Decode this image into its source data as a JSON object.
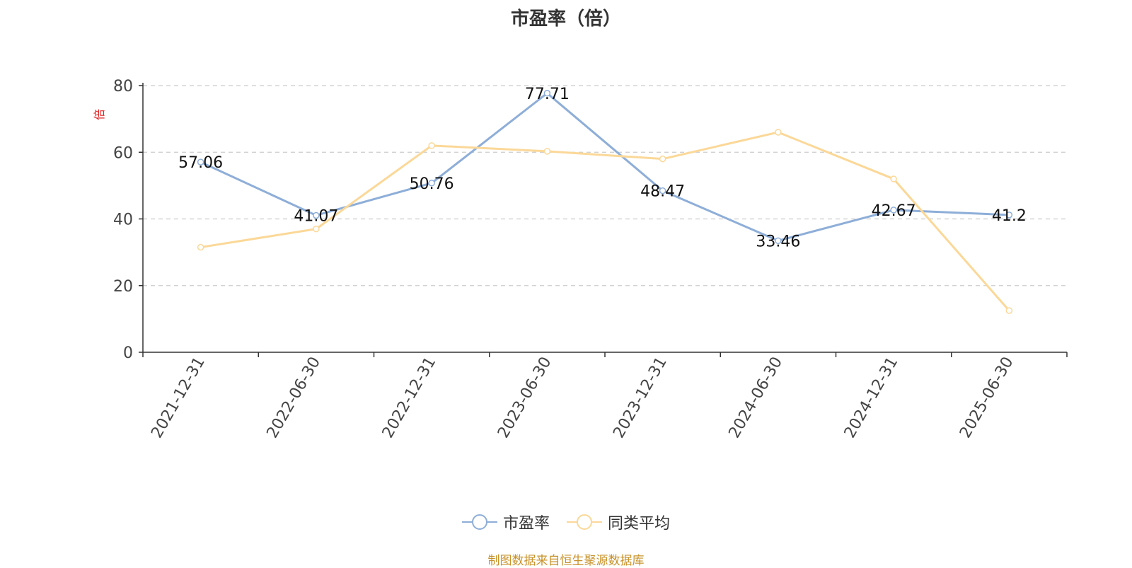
{
  "chart_data": {
    "type": "line",
    "title": "市盈率（倍）",
    "ylabel": "倍",
    "ylim": [
      0,
      80
    ],
    "yticks": [
      0,
      20,
      40,
      60,
      80
    ],
    "categories": [
      "2021-12-31",
      "2022-06-30",
      "2022-12-31",
      "2023-06-30",
      "2023-12-31",
      "2024-06-30",
      "2024-12-31",
      "2025-06-30"
    ],
    "grid": "horizontal dashed",
    "legend_position": "bottom",
    "series": [
      {
        "name": "市盈率",
        "color": "#8eaed8",
        "values": [
          57.06,
          41.07,
          50.76,
          77.71,
          48.47,
          33.46,
          42.67,
          41.2
        ],
        "labels": [
          "57.06",
          "41.07",
          "50.76",
          "77.71",
          "48.47",
          "33.46",
          "42.67",
          "41.2"
        ]
      },
      {
        "name": "同类平均",
        "color": "#fbd898",
        "values": [
          31.5,
          37.0,
          62.0,
          60.3,
          58.0,
          66.0,
          52.0,
          12.5
        ]
      }
    ]
  },
  "source_note": "制图数据来自恒生聚源数据库"
}
